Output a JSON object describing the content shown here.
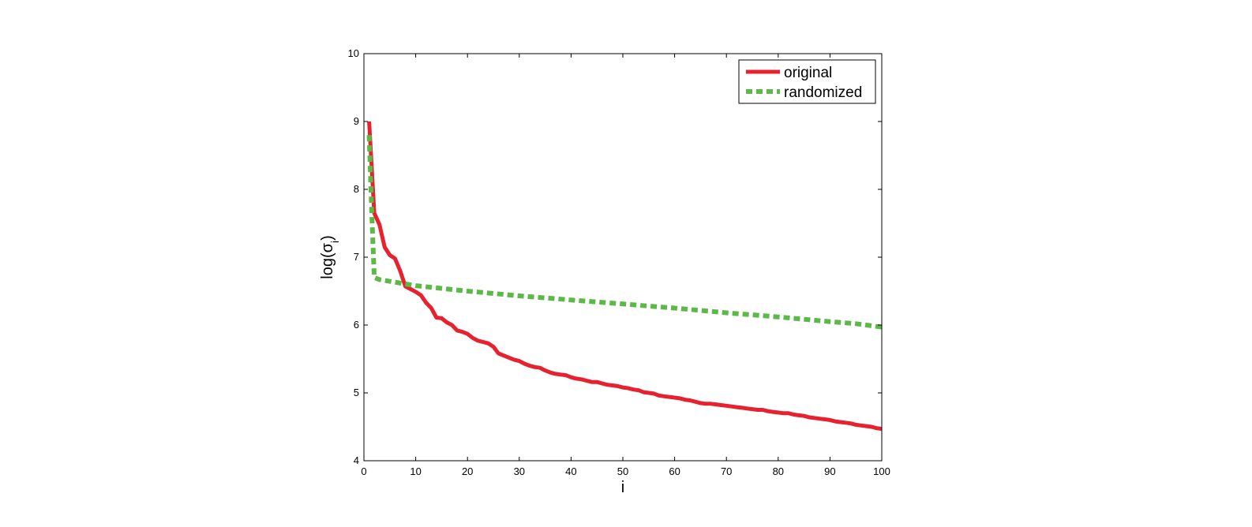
{
  "chart_data": {
    "type": "line",
    "xlabel": "i",
    "ylabel_main": "log(σ",
    "ylabel_sub": "i",
    "ylabel_close": ")",
    "xlim": [
      0,
      100
    ],
    "ylim": [
      4,
      10
    ],
    "xticks": [
      0,
      10,
      20,
      30,
      40,
      50,
      60,
      70,
      80,
      90,
      100
    ],
    "yticks": [
      4,
      5,
      6,
      7,
      8,
      9,
      10
    ],
    "grid": false,
    "legend_position": "top-right",
    "series": [
      {
        "name": "original",
        "color": "#e8212e",
        "style": "solid",
        "x": [
          1,
          2,
          3,
          4,
          5,
          6,
          7,
          8,
          9,
          10,
          11,
          12,
          13,
          14,
          15,
          16,
          17,
          18,
          19,
          20,
          21,
          22,
          23,
          24,
          25,
          26,
          27,
          28,
          29,
          30,
          31,
          32,
          33,
          34,
          35,
          36,
          37,
          38,
          39,
          40,
          41,
          42,
          43,
          44,
          45,
          46,
          47,
          48,
          49,
          50,
          51,
          52,
          53,
          54,
          55,
          56,
          57,
          58,
          59,
          60,
          61,
          62,
          63,
          64,
          65,
          66,
          67,
          68,
          69,
          70,
          71,
          72,
          73,
          74,
          75,
          76,
          77,
          78,
          79,
          80,
          81,
          82,
          83,
          84,
          85,
          86,
          87,
          88,
          89,
          90,
          91,
          92,
          93,
          94,
          95,
          96,
          97,
          98,
          99,
          100
        ],
        "y": [
          9.0,
          7.65,
          7.48,
          7.15,
          7.03,
          6.98,
          6.8,
          6.57,
          6.53,
          6.49,
          6.44,
          6.33,
          6.25,
          6.11,
          6.1,
          6.04,
          6.0,
          5.92,
          5.9,
          5.87,
          5.81,
          5.77,
          5.75,
          5.73,
          5.68,
          5.58,
          5.55,
          5.52,
          5.49,
          5.47,
          5.43,
          5.4,
          5.38,
          5.37,
          5.33,
          5.3,
          5.28,
          5.27,
          5.26,
          5.23,
          5.21,
          5.2,
          5.18,
          5.16,
          5.16,
          5.14,
          5.12,
          5.11,
          5.1,
          5.08,
          5.07,
          5.05,
          5.04,
          5.01,
          5.0,
          4.99,
          4.96,
          4.95,
          4.94,
          4.93,
          4.92,
          4.9,
          4.89,
          4.87,
          4.85,
          4.84,
          4.84,
          4.83,
          4.82,
          4.81,
          4.8,
          4.79,
          4.78,
          4.77,
          4.76,
          4.75,
          4.75,
          4.73,
          4.72,
          4.71,
          4.7,
          4.7,
          4.68,
          4.67,
          4.66,
          4.64,
          4.63,
          4.62,
          4.61,
          4.6,
          4.58,
          4.57,
          4.56,
          4.55,
          4.53,
          4.52,
          4.51,
          4.5,
          4.48,
          4.47
        ]
      },
      {
        "name": "randomized",
        "color": "#5cb947",
        "style": "dashed",
        "x": [
          1,
          1.5,
          2,
          3,
          10,
          20,
          30,
          40,
          50,
          60,
          70,
          80,
          90,
          95,
          100
        ],
        "y": [
          8.8,
          7.7,
          6.7,
          6.67,
          6.58,
          6.5,
          6.43,
          6.37,
          6.31,
          6.25,
          6.18,
          6.12,
          6.05,
          6.02,
          5.97
        ]
      }
    ]
  }
}
